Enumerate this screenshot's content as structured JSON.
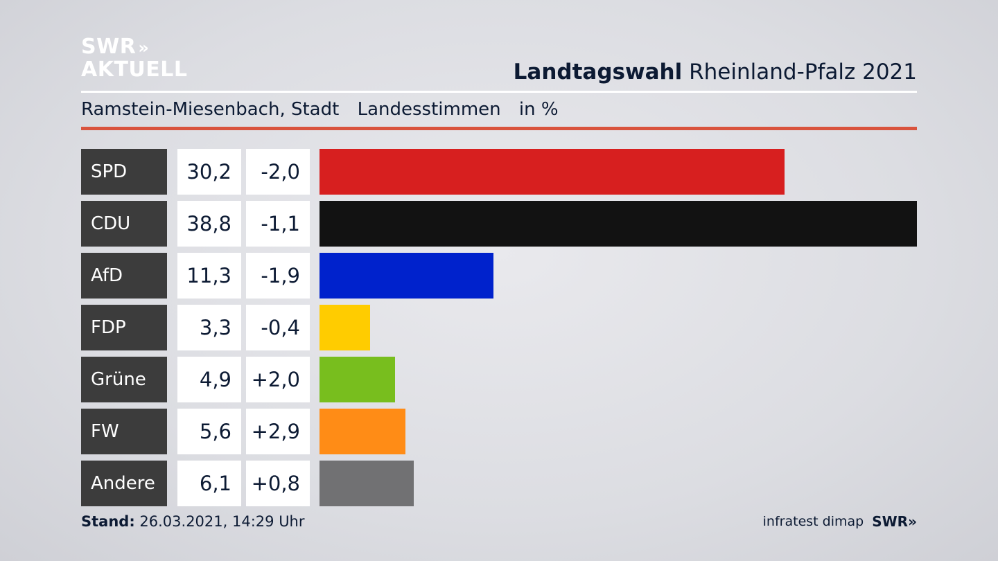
{
  "logo": {
    "line1": "SWR",
    "arrows": "»",
    "line2": "AKTUELL"
  },
  "header": {
    "title_bold": "Landtagswahl",
    "title_rest": "Rheinland-Pfalz 2021"
  },
  "subheader": {
    "location": "Ramstein-Miesenbach, Stadt",
    "category": "Landesstimmen",
    "unit": "in %"
  },
  "chart_data": {
    "type": "bar",
    "orientation": "horizontal",
    "categories": [
      "SPD",
      "CDU",
      "AfD",
      "FDP",
      "Grüne",
      "FW",
      "Andere"
    ],
    "values": [
      30.2,
      38.8,
      11.3,
      3.3,
      4.9,
      5.6,
      6.1
    ],
    "value_labels": [
      "30,2",
      "38,8",
      "11,3",
      "3,3",
      "4,9",
      "5,6",
      "6,1"
    ],
    "changes": [
      "-2,0",
      "-1,1",
      "-1,9",
      "-0,4",
      "+2,0",
      "+2,9",
      "+0,8"
    ],
    "colors": [
      "#d71f1f",
      "#121212",
      "#0022cc",
      "#ffcc00",
      "#78be1e",
      "#ff8c16",
      "#717173"
    ],
    "xlim": [
      0,
      38.8
    ]
  },
  "footer": {
    "stand_label": "Stand:",
    "stand_value": "26.03.2021, 14:29 Uhr",
    "source": "infratest dimap",
    "brand": "SWR",
    "brand_arrows": "»"
  }
}
